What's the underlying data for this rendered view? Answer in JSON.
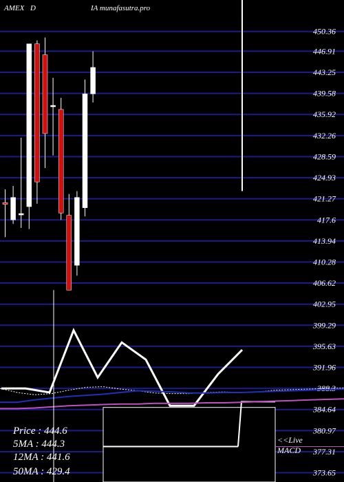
{
  "header": {
    "exchange": "AMEX",
    "ticker": "D",
    "site": "IA munafasutra.pro"
  },
  "colors": {
    "background": "#000000",
    "grid": "#1c1c8c",
    "up_candle": "#ffffff",
    "down_candle": "#cc1111",
    "price_line": "#ffffff",
    "ma_blue": "#1f2fbf",
    "ma_magenta": "#c050c0",
    "ma_dotted": "#ffffff"
  },
  "info_panel": {
    "price": "Price   : 444.6",
    "ma5": "5MA : 444.3",
    "ma12": "12MA : 441.6",
    "ma50": "50MA : 429.4"
  },
  "macd_labels": {
    "live": "<<Live",
    "macd": "MACD"
  },
  "chart_data": {
    "type": "candlestick",
    "title": "",
    "y_axis": {
      "side": "right",
      "ticks": [
        "450.36",
        "446.91",
        "443.25",
        "439.58",
        "435.92",
        "432.26",
        "428.59",
        "424.93",
        "421.27",
        "417.6",
        "413.94",
        "410.28",
        "406.62",
        "402.95",
        "399.29",
        "395.63",
        "391.96",
        "388.3",
        "384.64",
        "380.97",
        "377.31",
        "373.65"
      ],
      "range": [
        373.65,
        451.0
      ],
      "grid": true
    },
    "candles": [
      {
        "open": 420.6,
        "high": 422.9,
        "low": 414.6,
        "close": 420.3
      },
      {
        "open": 417.6,
        "high": 423.5,
        "low": 416.9,
        "close": 421.5
      },
      {
        "open": 418.7,
        "high": 431.9,
        "low": 416.2,
        "close": 418.7
      },
      {
        "open": 419.9,
        "high": 447.9,
        "low": 416.0,
        "close": 448.2
      },
      {
        "open": 448.2,
        "high": 448.8,
        "low": 420.4,
        "close": 424.2
      },
      {
        "open": 446.3,
        "high": 449.3,
        "low": 426.6,
        "close": 432.6
      },
      {
        "open": 437.5,
        "high": 442.3,
        "low": 428.8,
        "close": 437.5
      },
      {
        "open": 436.8,
        "high": 438.8,
        "low": 417.6,
        "close": 418.8
      },
      {
        "open": 418.4,
        "high": 422.1,
        "low": 405.4,
        "close": 405.4
      },
      {
        "open": 409.7,
        "high": 422.6,
        "low": 407.9,
        "close": 421.5
      },
      {
        "open": 419.7,
        "high": 442.0,
        "low": 418.2,
        "close": 439.5
      },
      {
        "open": 439.5,
        "high": 446.9,
        "low": 438.0,
        "close": 444.1
      }
    ],
    "moving_averages": [
      {
        "color": "#ffffff",
        "style": "dotted",
        "values": [
          388.3,
          387.6,
          387.2,
          387.4,
          388.0,
          388.5,
          388.6,
          388.2,
          387.9,
          387.5,
          387.4,
          387.4,
          387.6,
          387.7,
          387.6,
          387.7,
          388.0,
          388.1,
          388.2,
          388.3,
          388.4
        ]
      },
      {
        "color": "#1f2fbf",
        "style": "solid",
        "values": [
          385.9,
          385.9,
          386.3,
          386.6,
          386.9,
          387.1,
          387.3,
          387.6,
          387.9,
          387.8,
          387.7,
          387.5,
          387.5,
          387.6,
          387.6,
          387.7,
          387.8,
          387.9,
          388.0,
          388.1,
          388.2
        ]
      },
      {
        "color": "#c050c0",
        "style": "solid",
        "values": [
          384.8,
          384.8,
          384.9,
          385.1,
          385.3,
          385.4,
          385.5,
          385.6,
          385.6,
          385.7,
          385.7,
          385.7,
          385.8,
          385.8,
          385.9,
          386.0,
          386.1,
          386.2,
          386.3,
          386.4,
          386.5
        ]
      }
    ],
    "macd": {
      "line": [
        388.3,
        388.3,
        387.6,
        398.4,
        390.2,
        396.3,
        393.3,
        385.3,
        385.3,
        390.8,
        395.0
      ],
      "bar_tops": [
        385.0,
        385.0,
        385.0,
        385.0,
        385.0,
        385.0,
        385.0,
        385.0,
        385.0,
        385.0,
        385.0
      ],
      "baseline": 378.2
    },
    "price_marker": {
      "value": 444.6
    }
  }
}
